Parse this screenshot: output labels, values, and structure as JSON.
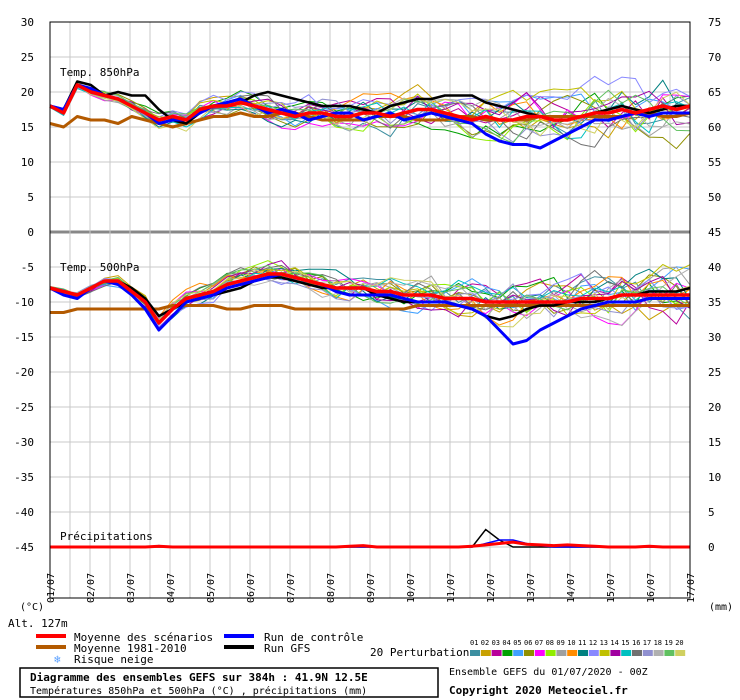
{
  "chart_data": {
    "type": "line",
    "left_axis": {
      "label": "(°C)",
      "ticks": [
        30,
        25,
        20,
        15,
        10,
        5,
        0,
        -5,
        -10,
        -15,
        -20,
        -25,
        -30,
        -35,
        -40,
        -45
      ]
    },
    "right_axis": {
      "label": "(mm)",
      "ticks": [
        75,
        70,
        65,
        60,
        55,
        50,
        45,
        40,
        35,
        30,
        25,
        20,
        15,
        10,
        5,
        0
      ]
    },
    "x_dates": [
      "01/07",
      "02/07",
      "03/07",
      "04/07",
      "05/07",
      "06/07",
      "07/07",
      "08/07",
      "09/07",
      "10/07",
      "11/07",
      "12/07",
      "13/07",
      "14/07",
      "15/07",
      "16/07",
      "17/07"
    ],
    "panel_labels": {
      "t850": "Temp. 850hPa",
      "t500": "Temp. 500hPa",
      "precip": "Précipitations"
    },
    "altitude": "Alt. 127m",
    "series": [
      {
        "name": "Moyenne des scénarios",
        "color": "#ff0000",
        "t850": [
          18,
          17,
          21,
          20,
          19.5,
          19,
          18,
          17,
          16,
          16.5,
          16,
          17.5,
          18,
          18,
          18.5,
          18,
          17.5,
          17,
          16.5,
          17,
          17,
          16.5,
          16.5,
          17,
          17,
          16.5,
          17,
          17.5,
          17.5,
          17,
          16.5,
          16,
          16.5,
          16,
          16,
          16.5,
          16.5,
          16,
          16,
          16.5,
          17,
          17,
          17.5,
          17,
          17.5,
          18,
          17.5,
          18
        ],
        "t500": [
          -8,
          -8.5,
          -9,
          -8,
          -7,
          -7,
          -8.5,
          -10,
          -13,
          -11,
          -9.5,
          -9,
          -8.5,
          -7.5,
          -7,
          -6.5,
          -6,
          -6,
          -6.5,
          -7,
          -7.5,
          -8,
          -8,
          -8,
          -8.5,
          -8.5,
          -9,
          -9,
          -9,
          -9.5,
          -9.5,
          -9.5,
          -10,
          -10,
          -10,
          -10,
          -10,
          -10,
          -10,
          -9.5,
          -9.5,
          -9.5,
          -9,
          -9,
          -9,
          -9,
          -9,
          -9
        ],
        "precip": [
          0,
          0,
          0,
          0,
          0,
          0,
          0,
          0,
          0.1,
          0,
          0,
          0,
          0,
          0,
          0,
          0,
          0,
          0,
          0,
          0,
          0,
          0,
          0.1,
          0.2,
          0,
          0,
          0,
          0,
          0,
          0,
          0,
          0.1,
          0.3,
          0.5,
          0.7,
          0.4,
          0.3,
          0.2,
          0.3,
          0.2,
          0.1,
          0,
          0,
          0,
          0.1,
          0,
          0,
          0
        ]
      },
      {
        "name": "Moyenne 1981-2010",
        "color": "#b35a00",
        "t850": [
          15.5,
          15,
          16.5,
          16,
          16,
          15.5,
          16.5,
          16,
          15.5,
          15,
          15.5,
          16,
          16.5,
          16.5,
          17,
          16.5,
          16.5,
          17,
          17,
          16.5,
          16,
          16,
          16,
          16,
          16.5,
          16.5,
          16.5,
          16,
          16,
          16,
          16.5,
          16.5,
          16,
          16,
          16,
          16,
          16.5,
          16.5,
          16.5,
          16.5,
          16.5,
          16.5,
          16.5,
          17,
          17,
          16.5,
          16.5,
          17
        ],
        "t500": [
          -11.5,
          -11.5,
          -11,
          -11,
          -11,
          -11,
          -11,
          -11,
          -11,
          -10.5,
          -10.5,
          -10.5,
          -10.5,
          -11,
          -11,
          -10.5,
          -10.5,
          -10.5,
          -11,
          -11,
          -11,
          -11,
          -11,
          -11,
          -11,
          -11,
          -11,
          -10.5,
          -10.5,
          -10.5,
          -10.5,
          -10.5,
          -10.5,
          -10.5,
          -10.5,
          -10.5,
          -10.5,
          -10.5,
          -10.5,
          -10.5,
          -10.5,
          -10.5,
          -10.5,
          -10.5,
          -10.5,
          -10.5,
          -10.5,
          -10.5
        ]
      },
      {
        "name": "Run de contrôle",
        "color": "#0000ff",
        "t850": [
          18,
          17.5,
          21,
          20.5,
          19.5,
          19,
          18,
          17,
          15.5,
          16,
          16,
          17,
          18,
          18.5,
          19,
          18,
          17,
          17.5,
          17,
          16,
          16.5,
          17,
          17,
          16,
          16.5,
          17,
          16,
          16.5,
          17,
          16.5,
          16,
          15.5,
          14,
          13,
          12.5,
          12.5,
          12,
          13,
          14,
          15,
          16,
          16,
          16.5,
          17,
          16.5,
          17,
          17,
          17
        ],
        "t500": [
          -8,
          -9,
          -9.5,
          -8,
          -7,
          -7.5,
          -9,
          -11,
          -14,
          -12,
          -10,
          -9.5,
          -9,
          -8,
          -7.5,
          -7,
          -6.5,
          -6,
          -6.5,
          -7,
          -7.5,
          -8.5,
          -9,
          -9,
          -9,
          -9,
          -9.5,
          -10,
          -10,
          -10,
          -10.5,
          -11,
          -12,
          -14,
          -16,
          -15.5,
          -14,
          -13,
          -12,
          -11,
          -10.5,
          -10,
          -10,
          -10,
          -9.5,
          -9.5,
          -9.5,
          -9.5
        ],
        "precip": [
          0,
          0,
          0,
          0,
          0,
          0,
          0,
          0,
          0.2,
          0,
          0,
          0,
          0,
          0,
          0,
          0,
          0,
          0,
          0,
          0,
          0,
          0,
          0,
          0,
          0,
          0,
          0,
          0,
          0,
          0,
          0,
          0,
          0.5,
          1.0,
          1.0,
          0.5,
          0.2,
          0,
          0,
          0,
          0,
          0,
          0,
          0,
          0,
          0,
          0,
          0
        ]
      },
      {
        "name": "Run GFS",
        "color": "#000000",
        "t850": [
          18,
          17.5,
          21.5,
          21,
          19.5,
          20,
          19.5,
          19.5,
          17.5,
          16,
          15.5,
          17,
          18,
          18,
          18.5,
          19.5,
          20,
          19.5,
          19,
          18.5,
          18,
          18,
          18,
          17.5,
          17,
          18,
          18.5,
          19,
          19,
          19.5,
          19.5,
          19.5,
          18.5,
          18,
          17.5,
          17,
          16.5,
          16,
          16,
          16.5,
          17,
          17.5,
          18,
          17.5,
          17,
          17.5,
          18,
          18
        ],
        "t500": [
          -8,
          -8.5,
          -9,
          -8,
          -7,
          -7,
          -8,
          -9.5,
          -12,
          -11,
          -10,
          -9.5,
          -9,
          -8.5,
          -8,
          -7,
          -6.5,
          -6.5,
          -7,
          -7.5,
          -8,
          -8,
          -8,
          -8,
          -9,
          -9.5,
          -10,
          -10,
          -10,
          -10,
          -10.5,
          -11,
          -12,
          -12.5,
          -12,
          -11,
          -10.5,
          -10.5,
          -10,
          -10,
          -10,
          -9.5,
          -9,
          -9,
          -8.5,
          -8.5,
          -8.5,
          -8
        ],
        "precip": [
          0,
          0,
          0,
          0,
          0,
          0,
          0,
          0,
          0,
          0,
          0,
          0,
          0,
          0,
          0,
          0,
          0,
          0,
          0,
          0,
          0,
          0,
          0,
          0,
          0,
          0,
          0,
          0,
          0,
          0,
          0,
          0,
          2.5,
          1.0,
          0,
          0,
          0,
          0,
          0,
          0,
          0,
          0,
          0,
          0,
          0,
          0,
          0,
          0
        ]
      }
    ],
    "perturbations": {
      "label": "20 Perturbations",
      "ids": [
        "01",
        "02",
        "03",
        "04",
        "05",
        "06",
        "07",
        "08",
        "09",
        "10",
        "11",
        "12",
        "13",
        "14",
        "15",
        "16",
        "17",
        "18",
        "19",
        "20"
      ],
      "colors": [
        "#3c8fa0",
        "#c8a000",
        "#b8009a",
        "#00a000",
        "#40a0ff",
        "#909000",
        "#ff00ff",
        "#90ee00",
        "#a0a0a0",
        "#ff8c00",
        "#008080",
        "#8888ff",
        "#c0c000",
        "#a000a0",
        "#00c0c0",
        "#707070",
        "#9090d0",
        "#b0b0b0",
        "#60c060",
        "#d0d060"
      ]
    },
    "legend": {
      "snow_risk": "Risque neige"
    },
    "footer": {
      "title": "Diagramme des ensembles GEFS sur 384h : 41.9N 12.5E",
      "subtitle": "Températures 850hPa et 500hPa (°C) , précipitations (mm)",
      "run_info": "Ensemble GEFS du 01/07/2020 - 00Z",
      "copyright": "Copyright 2020 Meteociel.fr"
    }
  }
}
